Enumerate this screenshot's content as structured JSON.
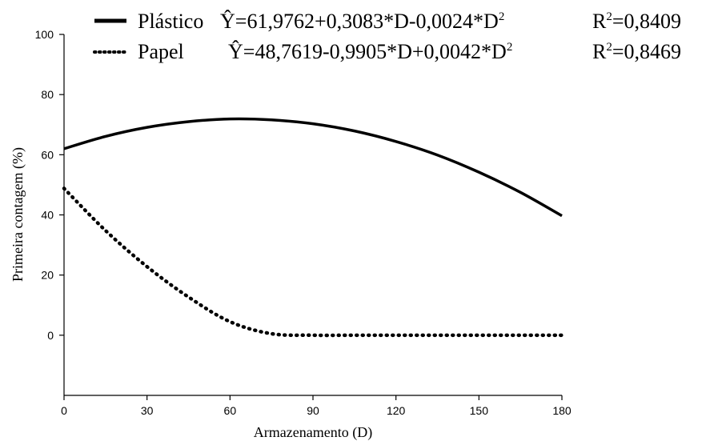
{
  "chart_data": {
    "type": "line",
    "xlabel": "Armazenamento (D)",
    "ylabel": "Primeira contagem (%)",
    "xlim": [
      0,
      180
    ],
    "ylim": [
      -20,
      100
    ],
    "x_ticks": [
      "0",
      "30",
      "60",
      "90",
      "120",
      "150",
      "180"
    ],
    "y_ticks": [
      "0",
      "20",
      "40",
      "60",
      "80",
      "100"
    ],
    "grid": false,
    "legend_position": "top",
    "x": [
      0,
      15,
      30,
      45,
      60,
      75,
      90,
      105,
      120,
      135,
      150,
      165,
      180
    ],
    "series": [
      {
        "name": "Plástico",
        "line_style": "solid",
        "equation": "Ŷ=61,9762+0,3083*D-0,0024*D",
        "equation_exp": "2",
        "r2_label": "R",
        "r2_exp": "2",
        "r2_value": "=0,8409",
        "values": [
          62.0,
          66.1,
          69.1,
          71.0,
          71.9,
          71.6,
          70.3,
          67.9,
          64.4,
          59.9,
          54.2,
          47.5,
          39.7
        ]
      },
      {
        "name": "Papel",
        "line_style": "dotted",
        "equation": "Ŷ=48,7619-0,9905*D+0,0042*D",
        "equation_exp": "2",
        "r2_label": "R",
        "r2_exp": "2",
        "r2_value": "=0,8469",
        "values": [
          48.8,
          34.8,
          22.8,
          12.7,
          4.5,
          0.5,
          0,
          0,
          0,
          0,
          0,
          0,
          0
        ]
      }
    ]
  }
}
